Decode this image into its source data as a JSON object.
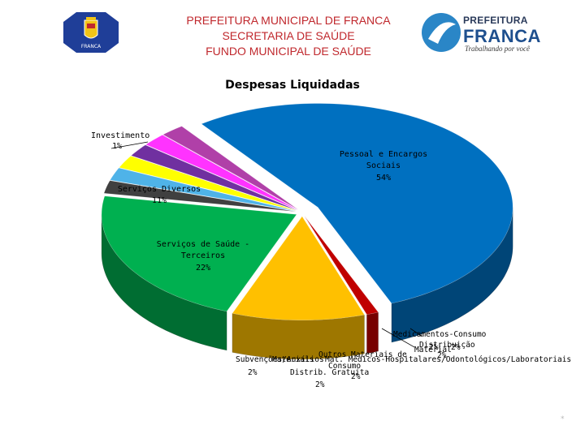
{
  "header": {
    "lines": [
      "PREFEITURA MUNICIPAL DE FRANCA",
      "SECRETARIA DE SAÚDE",
      "FUNDO MUNICIPAL DE SAÚDE"
    ],
    "seal_text": "FRANCA",
    "logo_kicker": "PREFEITURA",
    "logo_name": "FRANCA",
    "logo_tagline": "Trabalhando por você"
  },
  "colors": {
    "header_text": "#c0282d",
    "seal_background": "#1f3e98"
  },
  "chart_data": {
    "type": "pie",
    "style": "3d-exploded",
    "title": "Despesas Liquidadas",
    "slices": [
      {
        "label": "Pessoal e Encargos Sociais",
        "value": 54,
        "value_text": "54%",
        "color": "#0070c0"
      },
      {
        "label": "Investimento",
        "value": 1,
        "value_text": "1%",
        "color": "#c00000"
      },
      {
        "label": "Serviços Diversos",
        "value": 11,
        "value_text": "11%",
        "color": "#ffc000"
      },
      {
        "label": "Serviços de Saúde - Terceiros",
        "value": 22,
        "value_text": "22%",
        "color": "#00b050"
      },
      {
        "label": "Subvenções/Auxílios",
        "value": 2,
        "value_text": "2%",
        "color": "#404040"
      },
      {
        "label": "Materiais Distrib. Gratuita",
        "value": 2,
        "value_text": "2%",
        "color": "#4fb3e8"
      },
      {
        "label": "Outros Materiais de Consumo",
        "value": 2,
        "value_text": "2%",
        "color": "#ffff00"
      },
      {
        "label": "Mat. Médico-Hospitalares/Odontológicos/Laboratoriais",
        "value": 2,
        "value_text": "2%",
        "color": "#7030a0"
      },
      {
        "label": "Material Distribuição",
        "value": 2,
        "value_text": "2%",
        "color": "#ff33ff"
      },
      {
        "label": "Medicamentos-Consumo",
        "value": 2,
        "value_text": "2%",
        "color": "#b040a8"
      }
    ],
    "labels_display": {
      "investimento": [
        "Investimento",
        "1%"
      ],
      "pessoal": [
        "Pessoal e Encargos",
        "Sociais",
        "54%"
      ],
      "servicos_diversos": [
        "Serviços Diversos",
        "11%"
      ],
      "servicos_saude": [
        "Serviços de Saúde -",
        "Terceiros",
        "22%"
      ],
      "medicamentos": "Medicamentos-Consumo",
      "distribuicao": "Distribuição",
      "material": "Material",
      "medicos_pct": "2%",
      "outros_materiais": "Outros Materiais de",
      "mat_medicos": "Mat. Médicos-Hospitalares/Odontológicos/Laboratoriais",
      "mat_medicos_pct": "2%",
      "consumo": "Consumo",
      "subvencoes": "Subvenções/Auxílios",
      "materiais": "Materiais",
      "subvencoes_pct": "2%",
      "distrib_gratuita": "Distrib. Gratuita",
      "distrib_pct": "2%",
      "outros_pct": "2%"
    }
  }
}
